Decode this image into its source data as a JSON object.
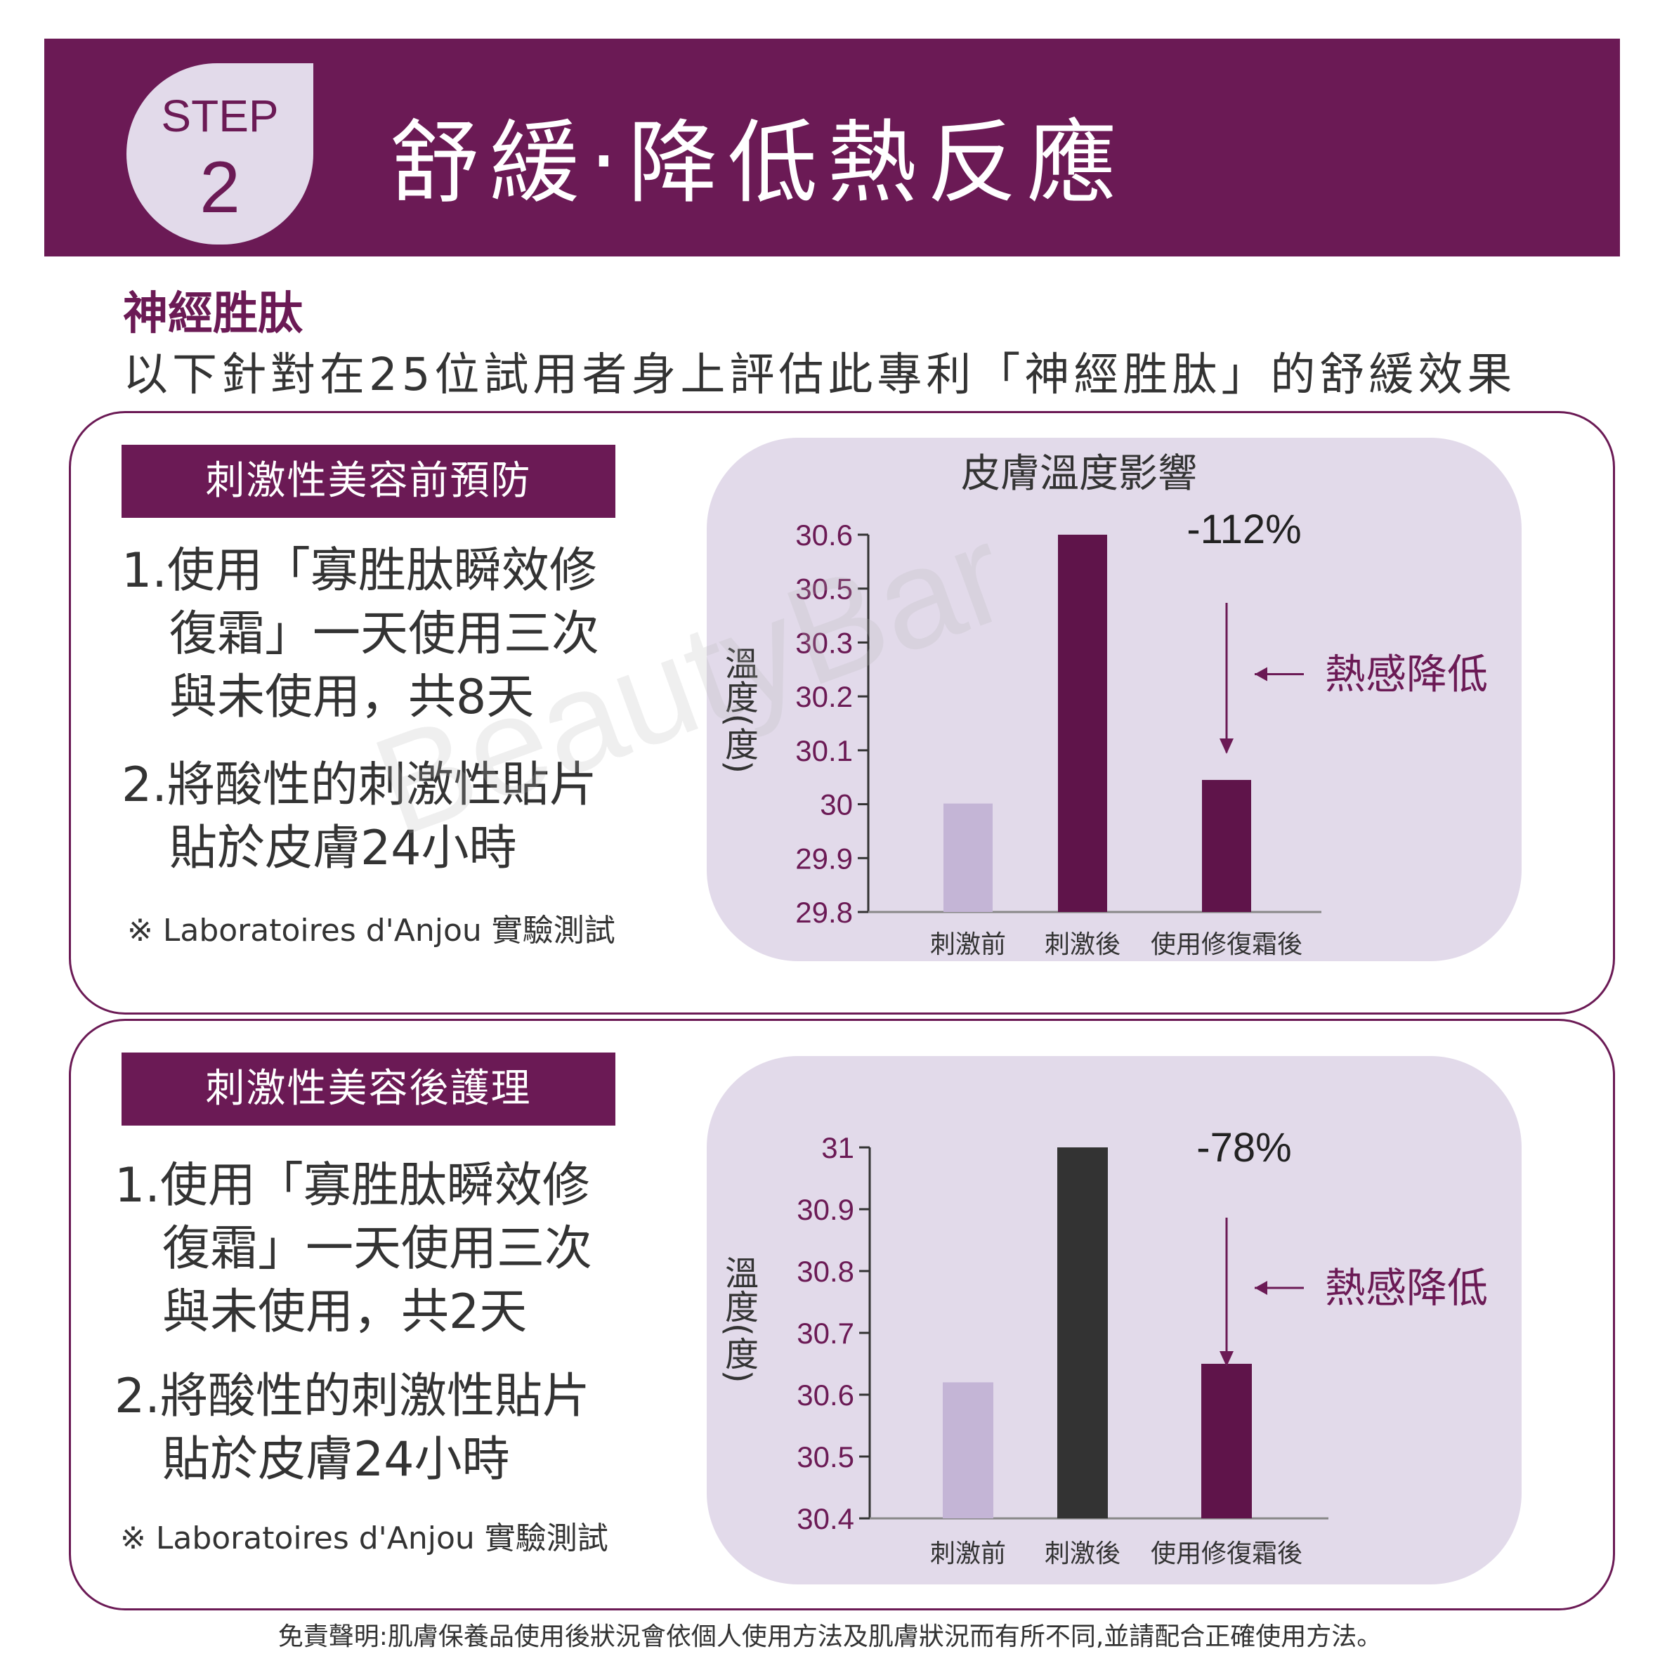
{
  "header": {
    "step_label": "STEP",
    "step_number": "2",
    "title": "舒緩‧降低熱反應"
  },
  "subtitle": "神經胜肽",
  "intro": "以下針對在25位試用者身上評估此專利「神經胜肽」的舒緩效果",
  "watermark": "BeautyBar",
  "panels": [
    {
      "heading": "刺激性美容前預防",
      "items": [
        [
          "1.使用「寡胜肽瞬效修",
          "　復霜」一天使用三次",
          "　與未使用，共8天"
        ],
        [
          "2.將酸性的刺激性貼片",
          "　貼於皮膚24小時"
        ]
      ],
      "note": "※ Laboratoires d'Anjou 實驗測試"
    },
    {
      "heading": "刺激性美容後護理",
      "items": [
        [
          "1.使用「寡胜肽瞬效修",
          "　復霜」一天使用三次",
          "　與未使用，共2天"
        ],
        [
          "2.將酸性的刺激性貼片",
          "　貼於皮膚24小時"
        ]
      ],
      "note": "※ Laboratoires d'Anjou 實驗測試"
    }
  ],
  "disclaimer": "免責聲明:肌膚保養品使用後狀況會依個人使用方法及肌膚狀況而有所不同,並請配合正確使用方法。",
  "colors": {
    "brand": "#6b1a55",
    "bar_light": "#c4b5d6",
    "bar_dark": "#5f144a",
    "bar_black": "#333333",
    "chart_bg": "#e2daea"
  },
  "chart_data": [
    {
      "type": "bar",
      "title": "皮膚溫度影響",
      "ylabel": "溫度(度)",
      "categories": [
        "刺激前",
        "刺激後",
        "使用修復霜後"
      ],
      "values": [
        30.03,
        30.6,
        30.08
      ],
      "bar_colors": [
        "#c4b5d6",
        "#5f144a",
        "#5f144a"
      ],
      "y_ticks": [
        "30.6",
        "30.5",
        "30.3",
        "30.2",
        "30.1",
        "30",
        "29.9",
        "29.8"
      ],
      "ylim": [
        29.8,
        30.6
      ],
      "annotation": {
        "percent": "-112%",
        "label": "熱感降低"
      }
    },
    {
      "type": "bar",
      "title": "",
      "ylabel": "溫度(度)",
      "categories": [
        "刺激前",
        "刺激後",
        "使用修復霜後"
      ],
      "values": [
        30.62,
        31.0,
        30.65
      ],
      "bar_colors": [
        "#c4b5d6",
        "#333333",
        "#5f144a"
      ],
      "y_ticks": [
        "31",
        "30.9",
        "30.8",
        "30.7",
        "30.6",
        "30.5",
        "30.4"
      ],
      "ylim": [
        30.4,
        31.0
      ],
      "annotation": {
        "percent": "-78%",
        "label": "熱感降低"
      }
    }
  ]
}
